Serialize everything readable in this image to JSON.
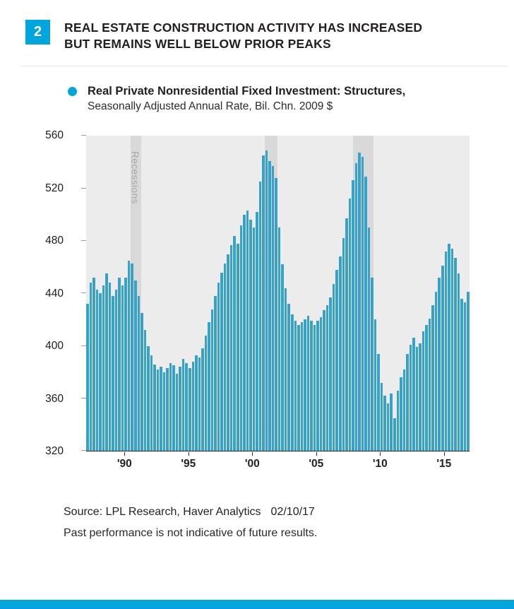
{
  "figure": {
    "badge_number": "2",
    "title_line1": "REAL ESTATE CONSTRUCTION ACTIVITY HAS INCREASED",
    "title_line2": "BUT REMAINS WELL BELOW PRIOR PEAKS"
  },
  "legend": {
    "line1": "Real Private Nonresidential Fixed Investment: Structures,",
    "line2": "Seasonally Adjusted Annual Rate, Bil. Chn. 2009 $"
  },
  "colors": {
    "accent_cyan": "#00a5dc",
    "bar_blue": "#38a1c9",
    "plot_background": "#ececec",
    "recession_band": "#d9d9d9"
  },
  "chart_data": {
    "type": "bar",
    "title": "Real Private Nonresidential Fixed Investment: Structures, Seasonally Adjusted Annual Rate, Bil. Chn. 2009 $",
    "ylabel": "Bil. Chn. 2009 $",
    "ylim": [
      320,
      560
    ],
    "yticks": [
      560,
      520,
      480,
      440,
      400,
      360,
      320
    ],
    "x_range": [
      1987,
      2017
    ],
    "x_frequency": "quarterly",
    "start_year": 1987,
    "xticks": [
      {
        "year": 1990,
        "label": "'90"
      },
      {
        "year": 1995,
        "label": "'95"
      },
      {
        "year": 2000,
        "label": "'00"
      },
      {
        "year": 2005,
        "label": "'05"
      },
      {
        "year": 2010,
        "label": "'10"
      },
      {
        "year": 2015,
        "label": "'15"
      }
    ],
    "recessions_label": "Recessions",
    "recession_bands": [
      [
        1990.5,
        1991.3
      ],
      [
        2001.0,
        2001.95
      ],
      [
        2007.9,
        2009.5
      ]
    ],
    "legend_position": "top-left",
    "grid": false,
    "values": [
      432,
      448,
      452,
      443,
      440,
      446,
      455,
      448,
      438,
      443,
      452,
      446,
      452,
      465,
      463,
      450,
      438,
      425,
      412,
      400,
      393,
      386,
      382,
      384,
      380,
      383,
      387,
      385,
      379,
      384,
      390,
      387,
      383,
      388,
      393,
      391,
      398,
      408,
      418,
      428,
      438,
      448,
      456,
      463,
      470,
      477,
      484,
      478,
      492,
      500,
      503,
      496,
      490,
      502,
      525,
      545,
      549,
      541,
      537,
      528,
      490,
      462,
      444,
      432,
      424,
      419,
      416,
      418,
      420,
      423,
      419,
      416,
      419,
      422,
      427,
      431,
      437,
      447,
      458,
      468,
      482,
      497,
      512,
      526,
      539,
      547,
      544,
      529,
      490,
      452,
      420,
      394,
      372,
      362,
      356,
      364,
      345,
      366,
      376,
      382,
      394,
      401,
      406,
      399,
      402,
      411,
      416,
      421,
      431,
      441,
      452,
      461,
      472,
      478,
      474,
      467,
      455,
      436,
      433,
      441
    ]
  },
  "footer": {
    "source": "Source: LPL Research, Haver Analytics",
    "date": "02/10/17",
    "disclaimer": "Past performance is not indicative of future results."
  }
}
